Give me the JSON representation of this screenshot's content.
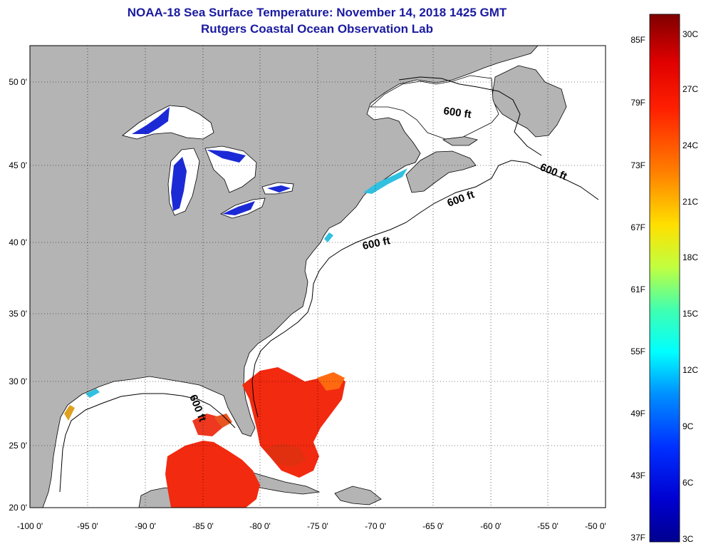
{
  "title": "NOAA-18 Sea Surface Temperature:  November 14, 2018 1425 GMT",
  "subtitle": "Rutgers Coastal Ocean Observation Lab",
  "map": {
    "lat_labels": [
      "50 0'",
      "45 0'",
      "40 0'",
      "35 0'",
      "30 0'",
      "25 0'",
      "20 0'"
    ],
    "lon_labels": [
      "-100 0'",
      "-95 0'",
      "-90 0'",
      "-85 0'",
      "-80 0'",
      "-75 0'",
      "-70 0'",
      "-65 0'",
      "-60 0'",
      "-55 0'",
      "-50 0'"
    ],
    "contour_label": "600 ft",
    "land_color": "#b4b4b4",
    "ocean_color": "#ffffff"
  },
  "colorbar": {
    "fahrenheit_labels": [
      "85F",
      "79F",
      "73F",
      "67F",
      "61F",
      "55F",
      "49F",
      "43F",
      "37F"
    ],
    "celsius_labels": [
      "30C",
      "27C",
      "24C",
      "21C",
      "18C",
      "15C",
      "12C",
      "9C",
      "6C",
      "3C"
    ],
    "colors": [
      "#7f0000",
      "#ff0000",
      "#ff8000",
      "#ffff00",
      "#80ff80",
      "#00ffff",
      "#0080ff",
      "#0000ff",
      "#00008f"
    ]
  }
}
